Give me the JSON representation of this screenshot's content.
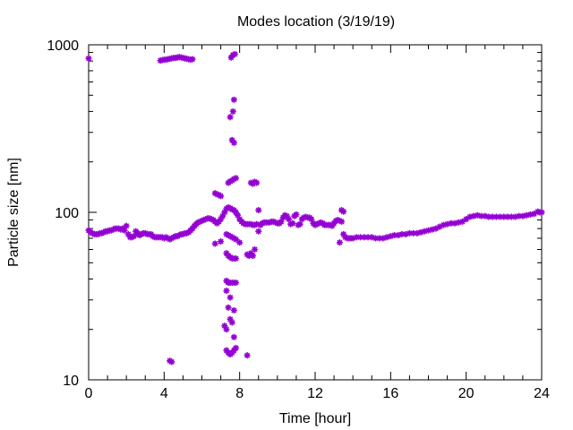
{
  "chart_data": {
    "type": "scatter",
    "title": "Modes location (3/19/19)",
    "xlabel": "Time [hour]",
    "ylabel": "Particle size [nm]",
    "xlim": [
      0,
      24
    ],
    "ylim": [
      10,
      1000
    ],
    "yscale": "log",
    "x_ticks": [
      0,
      4,
      8,
      12,
      16,
      20,
      24
    ],
    "x_tick_labels": [
      "0",
      "4",
      "8",
      "12",
      "16",
      "20",
      "24"
    ],
    "y_ticks": [
      10,
      100,
      1000
    ],
    "y_tick_labels": [
      "10",
      "100",
      "1000"
    ],
    "grid": false,
    "marker_color": "#9400d3",
    "series": [
      {
        "points": [
          [
            0.0,
            78
          ],
          [
            0.1,
            76
          ],
          [
            0.2,
            75
          ],
          [
            0.3,
            74
          ],
          [
            0.4,
            74
          ],
          [
            0.5,
            74
          ],
          [
            0.6,
            75
          ],
          [
            0.7,
            75
          ],
          [
            0.8,
            76
          ],
          [
            0.9,
            77
          ],
          [
            1.0,
            77
          ],
          [
            1.1,
            78
          ],
          [
            1.2,
            78
          ],
          [
            1.3,
            79
          ],
          [
            1.4,
            80
          ],
          [
            1.5,
            80
          ],
          [
            1.6,
            80
          ],
          [
            1.7,
            79
          ],
          [
            1.8,
            80
          ],
          [
            1.9,
            78
          ],
          [
            2.0,
            83
          ],
          [
            2.1,
            74
          ],
          [
            2.2,
            71
          ],
          [
            2.3,
            71
          ],
          [
            2.4,
            72
          ],
          [
            2.5,
            77
          ],
          [
            2.6,
            75
          ],
          [
            2.7,
            73
          ],
          [
            2.8,
            74
          ],
          [
            2.9,
            75
          ],
          [
            3.0,
            75
          ],
          [
            3.1,
            74
          ],
          [
            3.2,
            74
          ],
          [
            3.3,
            74
          ],
          [
            3.4,
            72
          ],
          [
            3.5,
            71
          ],
          [
            3.6,
            71
          ],
          [
            3.7,
            71
          ],
          [
            3.8,
            71
          ],
          [
            3.9,
            71
          ],
          [
            4.0,
            70
          ],
          [
            4.1,
            71
          ],
          [
            4.2,
            70
          ],
          [
            4.3,
            69
          ],
          [
            4.4,
            70
          ],
          [
            4.5,
            71
          ],
          [
            4.6,
            72
          ],
          [
            4.7,
            72
          ],
          [
            4.8,
            73
          ],
          [
            4.9,
            74
          ],
          [
            5.0,
            74
          ],
          [
            5.1,
            75
          ],
          [
            5.2,
            75
          ],
          [
            5.3,
            76
          ],
          [
            5.4,
            78
          ],
          [
            5.5,
            80
          ],
          [
            5.6,
            83
          ],
          [
            5.7,
            85
          ],
          [
            5.8,
            87
          ],
          [
            5.9,
            88
          ],
          [
            6.0,
            89
          ],
          [
            6.1,
            90
          ],
          [
            6.2,
            91
          ],
          [
            6.3,
            92
          ],
          [
            6.4,
            92
          ],
          [
            6.5,
            91
          ],
          [
            6.6,
            90
          ],
          [
            6.7,
            88
          ],
          [
            6.8,
            86
          ],
          [
            6.9,
            88
          ],
          [
            7.0,
            91
          ],
          [
            7.1,
            95
          ],
          [
            7.2,
            100
          ],
          [
            7.3,
            105
          ],
          [
            7.4,
            107
          ],
          [
            7.5,
            106
          ],
          [
            7.6,
            104
          ],
          [
            7.7,
            103
          ],
          [
            7.8,
            100
          ],
          [
            7.9,
            96
          ],
          [
            8.0,
            91
          ],
          [
            8.1,
            88
          ],
          [
            8.2,
            86
          ],
          [
            8.3,
            85
          ],
          [
            8.4,
            85
          ],
          [
            8.5,
            85
          ],
          [
            8.6,
            85
          ],
          [
            8.7,
            84
          ],
          [
            8.8,
            84
          ],
          [
            8.9,
            85
          ],
          [
            9.0,
            77
          ],
          [
            9.1,
            84
          ],
          [
            9.2,
            86
          ],
          [
            9.3,
            87
          ],
          [
            9.4,
            87
          ],
          [
            9.5,
            87
          ],
          [
            9.6,
            87
          ],
          [
            9.7,
            88
          ],
          [
            9.8,
            88
          ],
          [
            9.9,
            87
          ],
          [
            10.0,
            86
          ],
          [
            10.1,
            86
          ],
          [
            10.2,
            88
          ],
          [
            10.3,
            93
          ],
          [
            10.4,
            96
          ],
          [
            10.5,
            95
          ],
          [
            10.6,
            91
          ],
          [
            10.7,
            85
          ],
          [
            10.8,
            86
          ],
          [
            10.9,
            95
          ],
          [
            11.0,
            97
          ],
          [
            11.1,
            84
          ],
          [
            11.2,
            85
          ],
          [
            11.3,
            91
          ],
          [
            11.4,
            93
          ],
          [
            11.5,
            94
          ],
          [
            11.6,
            93
          ],
          [
            11.7,
            93
          ],
          [
            11.8,
            91
          ],
          [
            11.9,
            86
          ],
          [
            12.0,
            84
          ],
          [
            12.1,
            85
          ],
          [
            12.2,
            86
          ],
          [
            12.3,
            87
          ],
          [
            12.4,
            86
          ],
          [
            12.5,
            84
          ],
          [
            12.6,
            84
          ],
          [
            12.7,
            84
          ],
          [
            12.8,
            84
          ],
          [
            12.9,
            83
          ],
          [
            13.0,
            86
          ],
          [
            13.1,
            89
          ],
          [
            13.2,
            90
          ],
          [
            13.3,
            89
          ],
          [
            13.4,
            88
          ],
          [
            13.5,
            74
          ],
          [
            13.6,
            71
          ],
          [
            13.7,
            70
          ],
          [
            13.8,
            70
          ],
          [
            13.9,
            70
          ],
          [
            14.0,
            70
          ],
          [
            14.2,
            71
          ],
          [
            14.4,
            71
          ],
          [
            14.6,
            71
          ],
          [
            14.8,
            71
          ],
          [
            15.0,
            71
          ],
          [
            15.2,
            70
          ],
          [
            15.4,
            70
          ],
          [
            15.6,
            70
          ],
          [
            15.8,
            71
          ],
          [
            16.0,
            72
          ],
          [
            16.2,
            73
          ],
          [
            16.4,
            73
          ],
          [
            16.6,
            74
          ],
          [
            16.8,
            74
          ],
          [
            17.0,
            75
          ],
          [
            17.2,
            75
          ],
          [
            17.4,
            75
          ],
          [
            17.6,
            76
          ],
          [
            17.8,
            77
          ],
          [
            18.0,
            78
          ],
          [
            18.2,
            79
          ],
          [
            18.4,
            80
          ],
          [
            18.6,
            82
          ],
          [
            18.8,
            84
          ],
          [
            19.0,
            85
          ],
          [
            19.2,
            86
          ],
          [
            19.4,
            86
          ],
          [
            19.6,
            87
          ],
          [
            19.8,
            88
          ],
          [
            20.0,
            91
          ],
          [
            20.2,
            94
          ],
          [
            20.4,
            95
          ],
          [
            20.6,
            96
          ],
          [
            20.8,
            95
          ],
          [
            21.0,
            95
          ],
          [
            21.2,
            94
          ],
          [
            21.4,
            94
          ],
          [
            21.6,
            94
          ],
          [
            21.8,
            94
          ],
          [
            22.0,
            94
          ],
          [
            22.2,
            94
          ],
          [
            22.4,
            94
          ],
          [
            22.6,
            94
          ],
          [
            22.8,
            95
          ],
          [
            23.0,
            95
          ],
          [
            23.2,
            96
          ],
          [
            23.4,
            97
          ],
          [
            23.6,
            98
          ],
          [
            23.8,
            101
          ],
          [
            23.9,
            100
          ],
          [
            24.0,
            100
          ],
          [
            0.0,
            830
          ],
          [
            3.8,
            805
          ],
          [
            3.9,
            810
          ],
          [
            4.0,
            815
          ],
          [
            4.1,
            815
          ],
          [
            4.2,
            820
          ],
          [
            4.3,
            825
          ],
          [
            4.4,
            830
          ],
          [
            4.5,
            835
          ],
          [
            4.6,
            835
          ],
          [
            4.7,
            840
          ],
          [
            4.8,
            845
          ],
          [
            4.9,
            840
          ],
          [
            5.0,
            835
          ],
          [
            5.1,
            830
          ],
          [
            5.2,
            825
          ],
          [
            5.3,
            820
          ],
          [
            5.4,
            815
          ],
          [
            5.5,
            820
          ],
          [
            7.55,
            840
          ],
          [
            7.65,
            870
          ],
          [
            7.75,
            880
          ],
          [
            7.7,
            470
          ],
          [
            7.65,
            400
          ],
          [
            7.5,
            370
          ],
          [
            7.6,
            270
          ],
          [
            7.7,
            260
          ],
          [
            6.7,
            130
          ],
          [
            6.8,
            128
          ],
          [
            6.9,
            127
          ],
          [
            7.0,
            125
          ],
          [
            7.4,
            150
          ],
          [
            7.5,
            153
          ],
          [
            7.6,
            155
          ],
          [
            7.7,
            158
          ],
          [
            7.8,
            160
          ],
          [
            8.6,
            150
          ],
          [
            8.7,
            148
          ],
          [
            8.8,
            152
          ],
          [
            8.9,
            150
          ],
          [
            9.0,
            103
          ],
          [
            13.4,
            103
          ],
          [
            13.5,
            101
          ],
          [
            6.7,
            65
          ],
          [
            7.0,
            67
          ],
          [
            7.3,
            74
          ],
          [
            7.4,
            73
          ],
          [
            7.5,
            72
          ],
          [
            7.6,
            71
          ],
          [
            7.7,
            70
          ],
          [
            7.8,
            69
          ],
          [
            8.0,
            66
          ],
          [
            7.3,
            57
          ],
          [
            7.4,
            55
          ],
          [
            7.5,
            54
          ],
          [
            7.6,
            53
          ],
          [
            7.7,
            53
          ],
          [
            7.8,
            53
          ],
          [
            8.4,
            56
          ],
          [
            8.5,
            55
          ],
          [
            8.6,
            57
          ],
          [
            8.7,
            55
          ],
          [
            8.8,
            60
          ],
          [
            13.3,
            66
          ],
          [
            7.3,
            39
          ],
          [
            7.4,
            38
          ],
          [
            7.5,
            38
          ],
          [
            7.6,
            38
          ],
          [
            7.7,
            38
          ],
          [
            7.8,
            38
          ],
          [
            7.3,
            34
          ],
          [
            7.5,
            31
          ],
          [
            7.4,
            27
          ],
          [
            7.5,
            23
          ],
          [
            7.6,
            22
          ],
          [
            7.7,
            26
          ],
          [
            7.2,
            21
          ],
          [
            7.3,
            20
          ],
          [
            7.7,
            18
          ],
          [
            7.3,
            15
          ],
          [
            7.4,
            14.5
          ],
          [
            7.5,
            14.2
          ],
          [
            7.6,
            14.5
          ],
          [
            7.7,
            15
          ],
          [
            7.8,
            15.5
          ],
          [
            8.4,
            14
          ],
          [
            4.3,
            13
          ],
          [
            4.4,
            12.8
          ]
        ]
      }
    ]
  }
}
